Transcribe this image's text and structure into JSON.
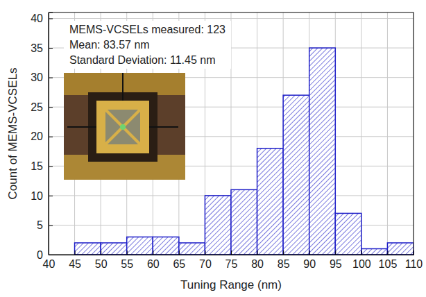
{
  "chart_data": {
    "type": "histogram",
    "bins": [
      45,
      50,
      55,
      60,
      65,
      70,
      75,
      80,
      85,
      90,
      95,
      100,
      105,
      110
    ],
    "counts": [
      2,
      2,
      3,
      3,
      2,
      10,
      11,
      18,
      27,
      35,
      7,
      1,
      2
    ],
    "color": "#1f1fc8",
    "xlim": [
      40,
      110
    ],
    "ylim": [
      0,
      41
    ],
    "xticks": [
      40,
      45,
      50,
      55,
      60,
      65,
      70,
      75,
      80,
      85,
      90,
      95,
      100,
      105,
      110
    ],
    "yticks": [
      0,
      5,
      10,
      15,
      20,
      25,
      30,
      35,
      40
    ],
    "xlabel": "Tuning Range (nm)",
    "ylabel": "Count of MEMS-VCSELs",
    "annotations": [
      "MEMS-VCSELs measured: 123",
      "Mean: 83.57 nm",
      "Standard Deviation: 11.45 nm"
    ],
    "grid": true
  }
}
